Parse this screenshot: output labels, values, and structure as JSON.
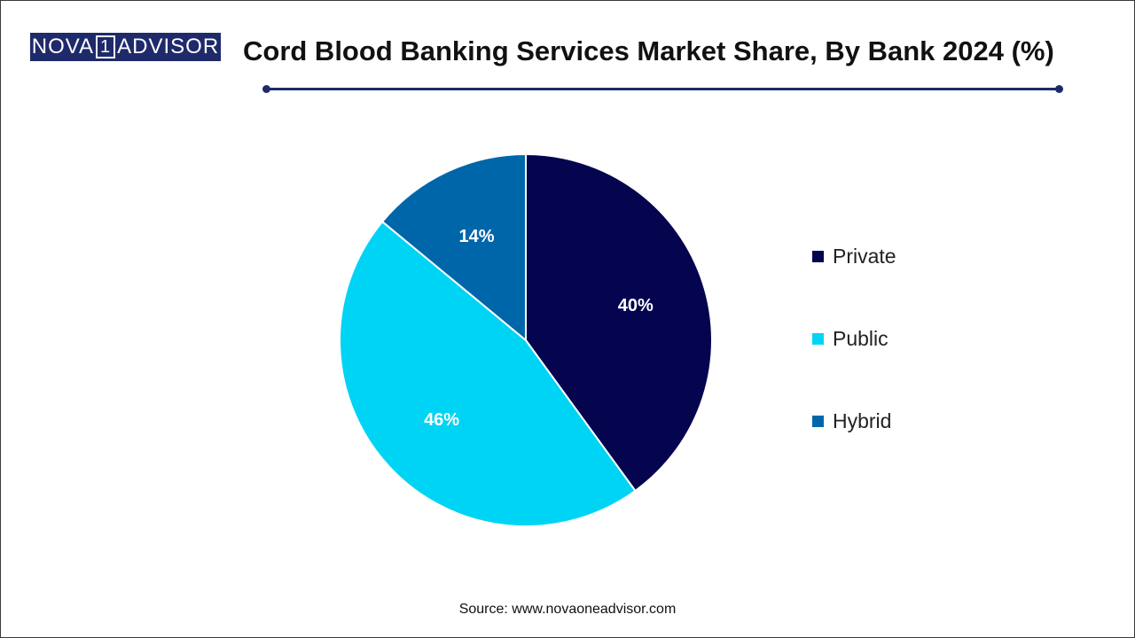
{
  "logo": {
    "text_left": "NOVA",
    "text_one": "1",
    "text_right": "ADVISOR"
  },
  "title": "Cord Blood Banking Services Market Share, By Bank 2024 (%)",
  "source": "Source: www.novaoneadvisor.com",
  "colors": {
    "brand": "#1f2a6b"
  },
  "chart_data": {
    "type": "pie",
    "title": "Cord Blood Banking Services Market Share, By Bank 2024 (%)",
    "categories": [
      "Private",
      "Public",
      "Hybrid"
    ],
    "values": [
      40,
      46,
      14
    ],
    "labels": [
      "40%",
      "46%",
      "14%"
    ],
    "colors": [
      "#04044f",
      "#00d4f5",
      "#0066aa"
    ],
    "start": "12 o'clock, clockwise",
    "legend_position": "right"
  }
}
